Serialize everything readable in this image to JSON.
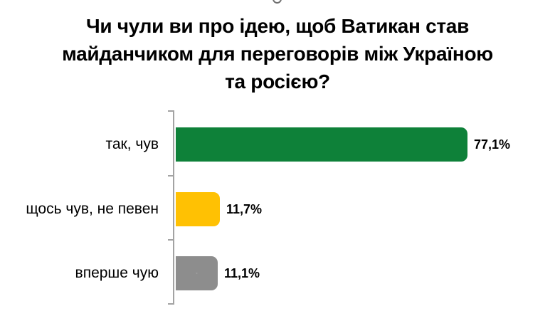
{
  "page": {
    "background_color": "#ffffff",
    "text_color": "#000000"
  },
  "decor": {
    "cropped_circle_color": "#6f6f6f"
  },
  "chart_data": {
    "type": "bar",
    "orientation": "horizontal",
    "title": "Чи чули ви про ідею, щоб Ватикан став майданчиком для переговорів між Україною та росією?",
    "title_lines": [
      "Чи чули ви про ідею, щоб Ватикан став",
      "майданчиком для переговорів між Україною",
      "та росією?"
    ],
    "categories": [
      "так, чув",
      "щось чув, не певен",
      "вперше чую"
    ],
    "values": [
      77.1,
      11.7,
      11.1
    ],
    "value_labels": [
      "77,1%",
      "11,7%",
      "11,1%"
    ],
    "bar_colors": [
      "#0e8139",
      "#ffc103",
      "#8d8d8d"
    ],
    "textured_bar_index": 2,
    "texture_dot_color": "#9c9c9c",
    "axis_color": "#a3a3a3",
    "xlim": [
      0,
      77.1
    ],
    "xlabel": "",
    "ylabel": "",
    "grid": false,
    "legend": false,
    "data_labels": true
  }
}
